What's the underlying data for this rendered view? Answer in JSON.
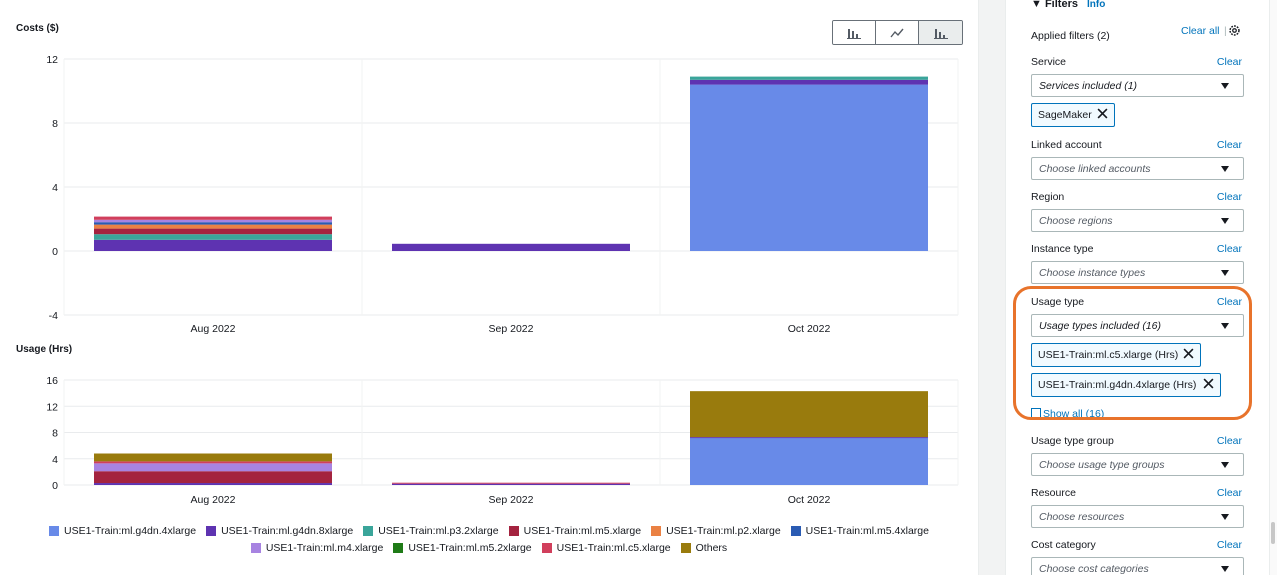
{
  "view_toggle": {
    "buttons": [
      {
        "name": "bar-chart-view",
        "icon": "bar-chart-icon"
      },
      {
        "name": "line-chart-view",
        "icon": "line-chart-icon"
      },
      {
        "name": "stacked-bar-view",
        "icon": "stacked-bar-chart-icon",
        "active": true
      }
    ]
  },
  "chart_data": [
    {
      "type": "bar",
      "stacked": true,
      "ylabel": "Costs ($)",
      "categories": [
        "Aug 2022",
        "Sep 2022",
        "Oct 2022"
      ],
      "yticks": [
        "12",
        "8",
        "4",
        "0",
        "-4"
      ],
      "ylim": [
        -4,
        12
      ],
      "grid": true,
      "series": [
        {
          "name": "USE1-Train:ml.g4dn.4xlarge",
          "color": "#688ae8",
          "values": [
            0,
            0,
            10.4
          ]
        },
        {
          "name": "USE1-Train:ml.g4dn.8xlarge",
          "color": "#5e33b1",
          "values": [
            0.7,
            0.45,
            0.3
          ]
        },
        {
          "name": "USE1-Train:ml.p3.2xlarge",
          "color": "#3aa59a",
          "values": [
            0.35,
            0,
            0.2
          ]
        },
        {
          "name": "USE1-Train:ml.m5.xlarge",
          "color": "#a4233f",
          "values": [
            0.35,
            0,
            0
          ]
        },
        {
          "name": "USE1-Train:ml.p2.xlarge",
          "color": "#ea8143",
          "values": [
            0.25,
            0,
            0
          ]
        },
        {
          "name": "USE1-Train:ml.m5.4xlarge",
          "color": "#2a5bb3",
          "values": [
            0.15,
            0,
            0
          ]
        },
        {
          "name": "USE1-Train:ml.m4.xlarge",
          "color": "#a783e1",
          "values": [
            0.15,
            0,
            0
          ]
        },
        {
          "name": "USE1-Train:ml.m5.2xlarge",
          "color": "#1f7b17",
          "values": [
            0,
            0,
            0
          ]
        },
        {
          "name": "USE1-Train:ml.c5.xlarge",
          "color": "#d13f5c",
          "values": [
            0.2,
            0,
            0
          ]
        },
        {
          "name": "Others",
          "color": "#997b0d",
          "values": [
            0,
            0,
            0
          ]
        }
      ]
    },
    {
      "type": "bar",
      "stacked": true,
      "ylabel": "Usage (Hrs)",
      "categories": [
        "Aug 2022",
        "Sep 2022",
        "Oct 2022"
      ],
      "yticks": [
        "16",
        "12",
        "8",
        "4",
        "0"
      ],
      "ylim": [
        0,
        16
      ],
      "grid": true,
      "series": [
        {
          "name": "USE1-Train:ml.g4dn.4xlarge",
          "color": "#688ae8",
          "values": [
            0,
            0,
            7.2
          ]
        },
        {
          "name": "USE1-Train:ml.g4dn.8xlarge",
          "color": "#5e33b1",
          "values": [
            0.3,
            0.2,
            0.1
          ]
        },
        {
          "name": "USE1-Train:ml.p3.2xlarge",
          "color": "#3aa59a",
          "values": [
            0,
            0,
            0
          ]
        },
        {
          "name": "USE1-Train:ml.m5.xlarge",
          "color": "#a4233f",
          "values": [
            1.8,
            0,
            0
          ]
        },
        {
          "name": "USE1-Train:ml.p2.xlarge",
          "color": "#ea8143",
          "values": [
            0,
            0,
            0
          ]
        },
        {
          "name": "USE1-Train:ml.m5.4xlarge",
          "color": "#2a5bb3",
          "values": [
            0,
            0,
            0
          ]
        },
        {
          "name": "USE1-Train:ml.m4.xlarge",
          "color": "#a783e1",
          "values": [
            1.2,
            0,
            0
          ]
        },
        {
          "name": "USE1-Train:ml.m5.2xlarge",
          "color": "#1f7b17",
          "values": [
            0,
            0,
            0
          ]
        },
        {
          "name": "USE1-Train:ml.c5.xlarge",
          "color": "#d13f5c",
          "values": [
            0.3,
            0.15,
            0
          ]
        },
        {
          "name": "Others",
          "color": "#997b0d",
          "values": [
            1.2,
            0,
            7.0
          ]
        }
      ]
    }
  ],
  "legend": {
    "rows": [
      [
        "USE1-Train:ml.g4dn.4xlarge",
        "USE1-Train:ml.g4dn.8xlarge",
        "USE1-Train:ml.p3.2xlarge",
        "USE1-Train:ml.m5.xlarge",
        "USE1-Train:ml.p2.xlarge",
        "USE1-Train:ml.m5.4xlarge"
      ],
      [
        "USE1-Train:ml.m4.xlarge",
        "USE1-Train:ml.m5.2xlarge",
        "USE1-Train:ml.c5.xlarge",
        "Others"
      ]
    ],
    "colors": {
      "USE1-Train:ml.g4dn.4xlarge": "#688ae8",
      "USE1-Train:ml.g4dn.8xlarge": "#5e33b1",
      "USE1-Train:ml.p3.2xlarge": "#3aa59a",
      "USE1-Train:ml.m5.xlarge": "#a4233f",
      "USE1-Train:ml.p2.xlarge": "#ea8143",
      "USE1-Train:ml.m5.4xlarge": "#2a5bb3",
      "USE1-Train:ml.m4.xlarge": "#a783e1",
      "USE1-Train:ml.m5.2xlarge": "#1f7b17",
      "USE1-Train:ml.c5.xlarge": "#d13f5c",
      "Others": "#997b0d"
    }
  },
  "filters": {
    "heading": "Filters",
    "info_link": "Info",
    "applied": "Applied filters (2)",
    "clear_all": "Clear all",
    "separator": "|",
    "clear_label": "Clear",
    "service": {
      "label": "Service",
      "value": "Services included (1)",
      "chip": "SageMaker"
    },
    "linked_account": {
      "label": "Linked account",
      "placeholder": "Choose linked accounts"
    },
    "region": {
      "label": "Region",
      "placeholder": "Choose regions"
    },
    "instance_type": {
      "label": "Instance type",
      "placeholder": "Choose instance types"
    },
    "usage_type": {
      "label": "Usage type",
      "value": "Usage types included (16)",
      "chips": [
        "USE1-Train:ml.c5.xlarge (Hrs)",
        "USE1-Train:ml.g4dn.4xlarge (Hrs)"
      ],
      "show_all": "Show all (16)"
    },
    "usage_type_group": {
      "label": "Usage type group",
      "placeholder": "Choose usage type groups"
    },
    "resource": {
      "label": "Resource",
      "placeholder": "Choose resources"
    },
    "cost_category": {
      "label": "Cost category",
      "placeholder": "Choose cost categories"
    }
  },
  "highlight_color": "#e8732b"
}
